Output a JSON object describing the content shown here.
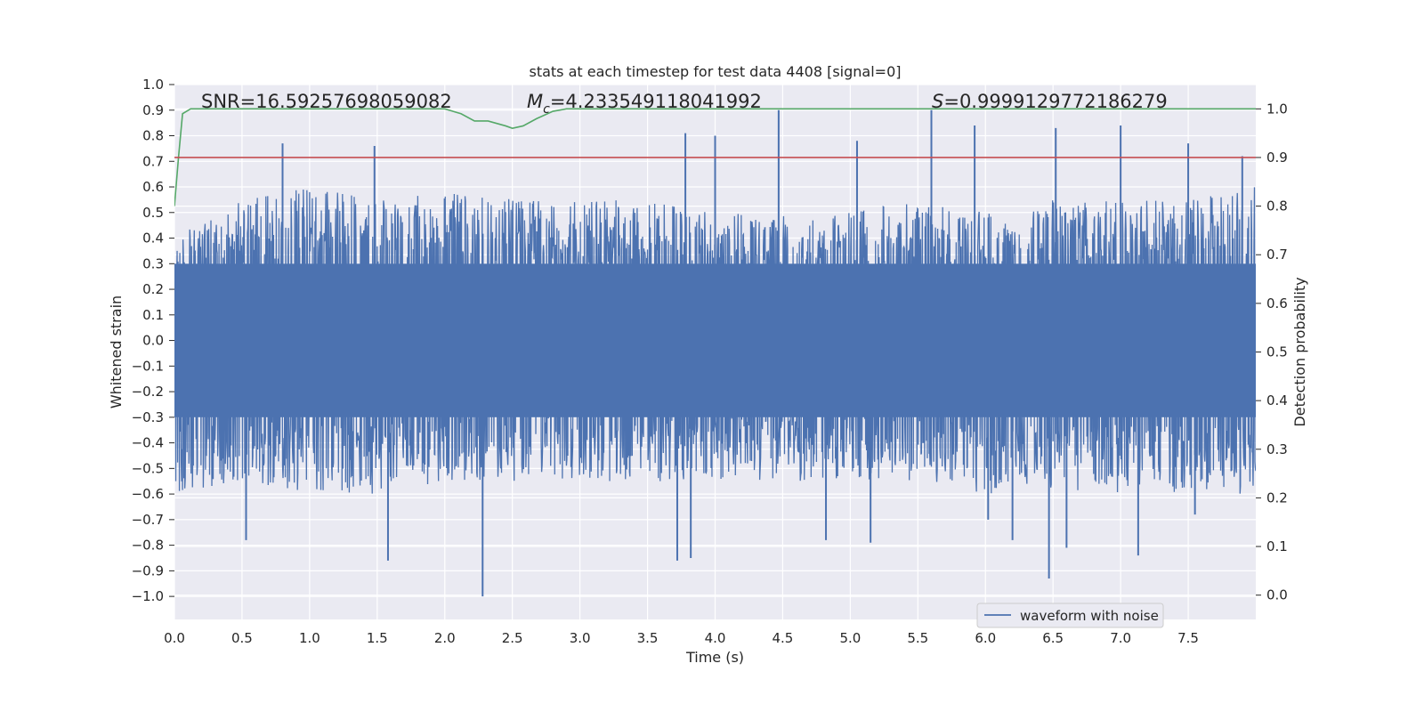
{
  "chart_data": {
    "type": "line",
    "title": "stats at each timestep for test data 4408 [signal=0]",
    "xlabel": "Time (s)",
    "ylabel": "Whitened strain",
    "y2label": "Detection probability",
    "xlim": [
      0.0,
      8.0
    ],
    "ylim": [
      -1.09,
      1.0
    ],
    "y2lim": [
      -0.05,
      1.05
    ],
    "xticks": [
      "0.0",
      "0.5",
      "1.0",
      "1.5",
      "2.0",
      "2.5",
      "3.0",
      "3.5",
      "4.0",
      "4.5",
      "5.0",
      "5.5",
      "6.0",
      "6.5",
      "7.0",
      "7.5"
    ],
    "yticks": [
      "1.0",
      "0.9",
      "0.8",
      "0.7",
      "0.6",
      "0.5",
      "0.4",
      "0.3",
      "0.2",
      "0.1",
      "0.0",
      "−0.1",
      "−0.2",
      "−0.3",
      "−0.4",
      "−0.5",
      "−0.6",
      "−0.7",
      "−0.8",
      "−0.9",
      "−1.0"
    ],
    "y2ticks": [
      "1.0",
      "0.9",
      "0.8",
      "0.7",
      "0.6",
      "0.5",
      "0.4",
      "0.3",
      "0.2",
      "0.1",
      "0.0"
    ],
    "grid": true,
    "legend_position": "lower-right",
    "annotations": {
      "snr": "SNR=16.59257698059082",
      "mc_symbol": "M",
      "mc_sub": "c",
      "mc_value": "=4.233549118041992",
      "s_symbol": "S",
      "s_value": "=0.9999129772186279"
    },
    "series": [
      {
        "name": "waveform with noise",
        "axis": "left",
        "color": "#4c72b0",
        "envelope_upper": [
          [
            0.0,
            0.4
          ],
          [
            0.5,
            0.55
          ],
          [
            1.0,
            0.6
          ],
          [
            1.5,
            0.55
          ],
          [
            2.0,
            0.6
          ],
          [
            2.5,
            0.55
          ],
          [
            3.0,
            0.55
          ],
          [
            3.5,
            0.55
          ],
          [
            4.0,
            0.5
          ],
          [
            4.5,
            0.5
          ],
          [
            5.0,
            0.5
          ],
          [
            5.5,
            0.55
          ],
          [
            6.0,
            0.5
          ],
          [
            6.5,
            0.55
          ],
          [
            7.0,
            0.55
          ],
          [
            7.5,
            0.55
          ],
          [
            8.0,
            0.6
          ]
        ],
        "envelope_lower": [
          [
            0.0,
            -0.6
          ],
          [
            0.5,
            -0.55
          ],
          [
            1.0,
            -0.6
          ],
          [
            1.5,
            -0.6
          ],
          [
            2.0,
            -0.55
          ],
          [
            2.5,
            -0.55
          ],
          [
            3.0,
            -0.55
          ],
          [
            3.5,
            -0.55
          ],
          [
            4.0,
            -0.55
          ],
          [
            4.5,
            -0.55
          ],
          [
            5.0,
            -0.55
          ],
          [
            5.5,
            -0.55
          ],
          [
            6.0,
            -0.6
          ],
          [
            6.5,
            -0.6
          ],
          [
            7.0,
            -0.6
          ],
          [
            7.5,
            -0.6
          ],
          [
            8.0,
            -0.6
          ]
        ],
        "spikes": [
          [
            0.8,
            0.77
          ],
          [
            1.48,
            0.76
          ],
          [
            3.78,
            0.81
          ],
          [
            4.0,
            0.8
          ],
          [
            4.47,
            0.9
          ],
          [
            5.05,
            0.78
          ],
          [
            5.6,
            0.9
          ],
          [
            5.92,
            0.84
          ],
          [
            6.52,
            0.83
          ],
          [
            7.0,
            0.84
          ],
          [
            7.5,
            0.77
          ],
          [
            7.9,
            0.72
          ],
          [
            0.53,
            -0.78
          ],
          [
            1.58,
            -0.86
          ],
          [
            2.28,
            -1.0
          ],
          [
            3.72,
            -0.86
          ],
          [
            3.82,
            -0.85
          ],
          [
            4.82,
            -0.78
          ],
          [
            5.15,
            -0.79
          ],
          [
            6.02,
            -0.7
          ],
          [
            6.2,
            -0.78
          ],
          [
            6.47,
            -0.93
          ],
          [
            6.6,
            -0.81
          ],
          [
            7.13,
            -0.84
          ],
          [
            7.55,
            -0.68
          ]
        ]
      },
      {
        "name": "",
        "axis": "right",
        "color": "#55a868",
        "points": [
          [
            0.0,
            0.8
          ],
          [
            0.03,
            0.9
          ],
          [
            0.06,
            0.99
          ],
          [
            0.12,
            1.0
          ],
          [
            2.0,
            1.0
          ],
          [
            2.12,
            0.99
          ],
          [
            2.22,
            0.975
          ],
          [
            2.32,
            0.975
          ],
          [
            2.45,
            0.965
          ],
          [
            2.5,
            0.96
          ],
          [
            2.58,
            0.965
          ],
          [
            2.68,
            0.98
          ],
          [
            2.8,
            0.995
          ],
          [
            2.9,
            1.0
          ],
          [
            8.0,
            1.0
          ]
        ]
      },
      {
        "name": "",
        "axis": "right",
        "color": "#c44e52",
        "points": [
          [
            0.0,
            0.9
          ],
          [
            8.0,
            0.9
          ]
        ]
      }
    ]
  }
}
